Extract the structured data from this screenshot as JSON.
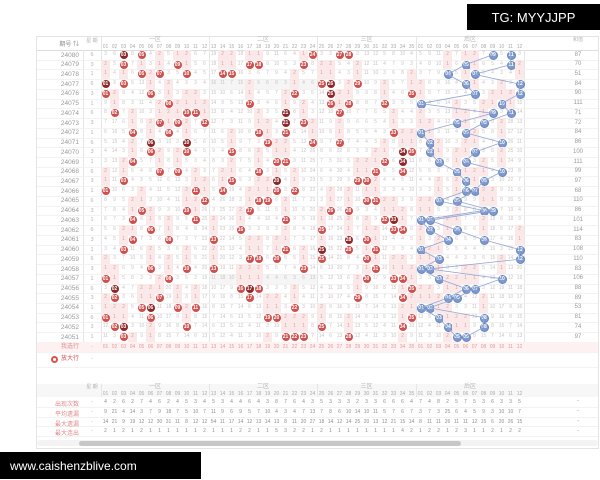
{
  "watermarks": {
    "top_right": "TG: MYYJJPP",
    "bottom_left": "www.caishenzblive.com"
  },
  "chart": {
    "period_header": "期号",
    "sort_icon": "⇅",
    "week_header": "星期",
    "sum_header": "和值",
    "zones": [
      {
        "key": "z1",
        "label": "一区",
        "start": 1,
        "end": 12,
        "rear": false
      },
      {
        "key": "z2",
        "label": "二区",
        "start": 13,
        "end": 24,
        "rear": false
      },
      {
        "key": "z3",
        "label": "三区",
        "start": 25,
        "end": 35,
        "rear": false
      },
      {
        "key": "rear",
        "label": "后区",
        "start": 1,
        "end": 12,
        "rear": true
      }
    ],
    "select_row_label": "我选行",
    "legend_row_label": "放大行",
    "stats_row_labels": [
      "出现次数",
      "平均遗漏",
      "最大遗漏",
      "最大连出"
    ],
    "stats_placeholder": "-",
    "row_highlight_zone2_periods": [
      24077,
      24057
    ],
    "colors": {
      "red_ball": "#cf4f4d",
      "repeat_ball": "#8e2727",
      "blue_ball": "#7e99cd",
      "pink_cell": "#fbe9e9"
    }
  },
  "chart_data": {
    "type": "table",
    "legend_position": "bottom-left",
    "columns": [
      "期号",
      "星期",
      "一区01-12",
      "二区13-24",
      "三区25-35",
      "后区01-12",
      "和值"
    ],
    "draws": [
      {
        "period": "24080",
        "week": "6",
        "front": [
          3,
          5,
          24,
          27,
          28
        ],
        "rear": [
          9,
          11
        ],
        "sum": 87
      },
      {
        "period": "24079",
        "week": "3",
        "front": [
          3,
          9,
          17,
          18,
          23
        ],
        "rear": [
          6,
          11
        ],
        "sum": 70
      },
      {
        "period": "24078",
        "week": "1",
        "front": [
          5,
          7,
          10,
          14,
          15
        ],
        "rear": [
          4,
          7
        ],
        "sum": 51
      },
      {
        "period": "24077",
        "week": "6",
        "front": [
          1,
          3,
          25,
          26,
          29
        ],
        "rear": [
          6,
          12
        ],
        "sum": 84
      },
      {
        "period": "24076",
        "week": "3",
        "front": [
          1,
          6,
          22,
          26,
          35
        ],
        "rear": [
          7,
          12
        ],
        "sum": 90
      },
      {
        "period": "24075",
        "week": "1",
        "front": [
          8,
          17,
          26,
          28,
          32
        ],
        "rear": [
          1,
          10
        ],
        "sum": 111
      },
      {
        "period": "24074",
        "week": "6",
        "front": [
          2,
          10,
          11,
          21,
          27
        ],
        "rear": [
          9,
          11
        ],
        "sum": 71
      },
      {
        "period": "24073",
        "week": "3",
        "front": [
          7,
          9,
          12,
          21,
          23
        ],
        "rear": [
          5,
          8
        ],
        "sum": 72
      },
      {
        "period": "24072",
        "week": "1",
        "front": [
          4,
          8,
          18,
          21,
          33
        ],
        "rear": [
          1,
          6
        ],
        "sum": 84
      },
      {
        "period": "24071",
        "week": "6",
        "front": [
          6,
          10,
          19,
          24,
          27
        ],
        "rear": [
          2,
          10
        ],
        "sum": 86
      },
      {
        "period": "24070",
        "week": "3",
        "front": [
          6,
          10,
          15,
          34,
          35
        ],
        "rear": [
          2,
          7
        ],
        "sum": 100
      },
      {
        "period": "24069",
        "week": "1",
        "front": [
          4,
          20,
          21,
          32,
          34
        ],
        "rear": [
          3,
          6
        ],
        "sum": 111
      },
      {
        "period": "24068",
        "week": "6",
        "front": [
          7,
          9,
          18,
          31,
          34
        ],
        "rear": [
          5,
          10
        ],
        "sum": 99
      },
      {
        "period": "24067",
        "week": "3",
        "front": [
          3,
          15,
          20,
          29,
          30
        ],
        "rear": [
          6,
          8
        ],
        "sum": 97
      },
      {
        "period": "24066",
        "week": "1",
        "front": [
          1,
          11,
          14,
          20,
          22
        ],
        "rear": [
          6,
          7
        ],
        "sum": 68
      },
      {
        "period": "24065",
        "week": "6",
        "front": [
          12,
          18,
          19,
          30,
          31
        ],
        "rear": [
          3,
          5
        ],
        "sum": 110
      },
      {
        "period": "24064",
        "week": "3",
        "front": [
          5,
          10,
          17,
          26,
          28
        ],
        "rear": [
          8,
          9
        ],
        "sum": 86
      },
      {
        "period": "24063",
        "week": "1",
        "front": [
          4,
          11,
          21,
          32,
          33
        ],
        "rear": [
          1,
          2
        ],
        "sum": 101
      },
      {
        "period": "24062",
        "week": "6",
        "front": [
          6,
          16,
          25,
          33,
          34
        ],
        "rear": [
          2,
          5
        ],
        "sum": 114
      },
      {
        "period": "24061",
        "week": "3",
        "front": [
          4,
          8,
          13,
          28,
          30
        ],
        "rear": [
          4,
          8
        ],
        "sum": 83
      },
      {
        "period": "24060",
        "week": "1",
        "front": [
          3,
          21,
          25,
          28,
          31
        ],
        "rear": [
          1,
          12
        ],
        "sum": 108
      },
      {
        "period": "24059",
        "week": "6",
        "front": [
          17,
          18,
          20,
          25,
          30
        ],
        "rear": [
          3,
          12
        ],
        "sum": 110
      },
      {
        "period": "24058",
        "week": "3",
        "front": [
          6,
          10,
          13,
          23,
          31
        ],
        "rear": [
          1,
          2
        ],
        "sum": 83
      },
      {
        "period": "24057",
        "week": "1",
        "front": [
          1,
          8,
          30,
          33,
          34
        ],
        "rear": [
          3,
          10
        ],
        "sum": 106
      },
      {
        "period": "24056",
        "week": "6",
        "front": [
          2,
          16,
          17,
          18,
          35
        ],
        "rear": [
          6,
          7
        ],
        "sum": 88
      },
      {
        "period": "24055",
        "week": "3",
        "front": [
          2,
          7,
          17,
          29,
          34
        ],
        "rear": [
          4,
          5
        ],
        "sum": 89
      },
      {
        "period": "24054",
        "week": "1",
        "front": [
          5,
          6,
          9,
          11,
          22
        ],
        "rear": [
          1,
          2
        ],
        "sum": 53
      },
      {
        "period": "24053",
        "week": "6",
        "front": [
          1,
          6,
          19,
          20,
          35
        ],
        "rear": [
          3,
          8
        ],
        "sum": 81
      },
      {
        "period": "24052",
        "week": "3",
        "front": [
          2,
          3,
          10,
          25,
          34
        ],
        "rear": [
          4,
          8
        ],
        "sum": 74
      },
      {
        "period": "24051",
        "week": "1",
        "front": [
          3,
          21,
          22,
          23,
          28
        ],
        "rear": [
          5,
          6
        ],
        "sum": 97
      }
    ],
    "stats": {
      "appear": {
        "z1": [
          4,
          2,
          6,
          2,
          7,
          4,
          6,
          2,
          4,
          5,
          3,
          4
        ],
        "z2": [
          5,
          3,
          4,
          4,
          6,
          4,
          3,
          8,
          7,
          6,
          4,
          3
        ],
        "z3": [
          5,
          3,
          3,
          3,
          2,
          3,
          3,
          6,
          6,
          6,
          4
        ],
        "rear": [
          7,
          4,
          8,
          2,
          5,
          7,
          5,
          3,
          6,
          3,
          3,
          5
        ]
      },
      "avg_miss": {
        "z1": [
          9,
          21,
          4,
          14,
          3,
          7,
          9,
          18,
          7,
          5,
          10,
          7
        ],
        "z2": [
          11,
          9,
          6,
          9,
          5,
          7,
          10,
          4,
          3,
          4,
          7,
          13
        ],
        "z3": [
          7,
          8,
          6,
          10,
          14,
          10,
          11,
          5,
          7,
          6,
          7
        ],
        "rear": [
          3,
          7,
          3,
          25,
          6,
          4,
          5,
          9,
          3,
          10,
          10,
          7
        ]
      },
      "max_miss": {
        "z1": [
          14,
          21,
          9,
          19,
          12,
          12,
          30,
          31,
          11,
          8,
          12,
          12
        ],
        "z2": [
          54,
          11,
          17,
          14,
          12,
          13,
          14,
          13,
          8,
          11,
          20,
          27
        ],
        "z3": [
          18,
          14,
          12,
          14,
          25,
          20,
          13,
          12,
          21,
          15,
          14
        ],
        "rear": [
          8,
          11,
          11,
          26,
          11,
          11,
          12,
          15,
          6,
          20,
          26,
          15
        ]
      },
      "max_streak": {
        "z1": [
          2,
          1,
          2,
          1,
          2,
          1,
          1,
          1,
          1,
          1,
          1,
          2
        ],
        "z2": [
          1,
          1,
          1,
          2,
          2,
          1,
          1,
          5,
          3,
          2,
          2,
          1
        ],
        "z3": [
          2,
          1,
          1,
          1,
          1,
          1,
          1,
          1,
          1,
          4,
          2
        ],
        "rear": [
          1,
          2,
          2,
          1,
          2,
          3,
          1,
          1,
          2,
          1,
          2,
          2
        ]
      }
    }
  }
}
